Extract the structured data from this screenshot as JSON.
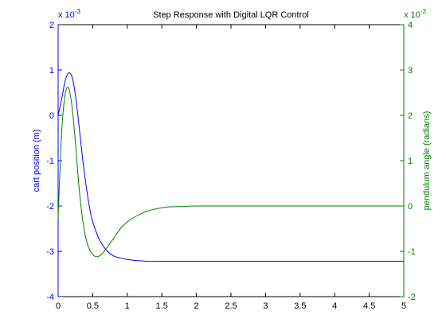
{
  "chart_data": {
    "type": "line",
    "title": "Step Response with Digital LQR Control",
    "x_axis": {
      "range": [
        0,
        5
      ],
      "ticks": [
        0,
        0.5,
        1,
        1.5,
        2,
        2.5,
        3,
        3.5,
        4,
        4.5,
        5
      ],
      "tick_labels": [
        "0",
        "0.5",
        "1",
        "1.5",
        "2",
        "2.5",
        "3",
        "3.5",
        "4",
        "4.5",
        "5"
      ],
      "label": ""
    },
    "y_left": {
      "label": "cart position (m)",
      "range": [
        -4,
        2
      ],
      "ticks": [
        -4,
        -3,
        -2,
        -1,
        0,
        1,
        2
      ],
      "tick_labels": [
        "-4",
        "-3",
        "-2",
        "-1",
        "0",
        "1",
        "2"
      ],
      "multiplier_label": "x 10",
      "multiplier_exp": "-3",
      "color": "#0000ff"
    },
    "y_right": {
      "label": "pendulum angle (radians)",
      "range": [
        -2,
        4
      ],
      "ticks": [
        -2,
        -1,
        0,
        1,
        2,
        3,
        4
      ],
      "tick_labels": [
        "-2",
        "-1",
        "0",
        "1",
        "2",
        "3",
        "4"
      ],
      "multiplier_label": "x 10",
      "multiplier_exp": "-3",
      "color": "#008000"
    },
    "grid": false,
    "legend": "none",
    "series": [
      {
        "axis": "left",
        "color": "#0000ff",
        "x": [
          0,
          0.05,
          0.1,
          0.15,
          0.2,
          0.25,
          0.3,
          0.35,
          0.4,
          0.45,
          0.5,
          0.6,
          0.7,
          0.8,
          0.9,
          1.0,
          1.1,
          1.2,
          1.3,
          1.5,
          2.0,
          2.5,
          3.0,
          3.5,
          4.0,
          4.5,
          5.0
        ],
        "y": [
          0,
          0.35,
          0.75,
          0.93,
          0.85,
          0.45,
          -0.2,
          -0.9,
          -1.5,
          -2.0,
          -2.35,
          -2.75,
          -2.98,
          -3.1,
          -3.15,
          -3.18,
          -3.2,
          -3.21,
          -3.22,
          -3.22,
          -3.22,
          -3.22,
          -3.22,
          -3.22,
          -3.22,
          -3.22,
          -3.22
        ]
      },
      {
        "axis": "right",
        "color": "#008000",
        "x": [
          0,
          0.05,
          0.1,
          0.15,
          0.2,
          0.25,
          0.3,
          0.35,
          0.4,
          0.45,
          0.5,
          0.55,
          0.6,
          0.65,
          0.7,
          0.8,
          0.9,
          1.0,
          1.1,
          1.2,
          1.3,
          1.4,
          1.5,
          1.6,
          1.8,
          2.0,
          2.5,
          3.0,
          4.0,
          5.0
        ],
        "y": [
          -0.25,
          1.6,
          2.45,
          2.6,
          2.2,
          1.4,
          0.45,
          -0.25,
          -0.7,
          -0.95,
          -1.07,
          -1.12,
          -1.1,
          -1.03,
          -0.93,
          -0.72,
          -0.5,
          -0.35,
          -0.25,
          -0.17,
          -0.11,
          -0.07,
          -0.04,
          -0.02,
          -0.01,
          0,
          0,
          0,
          0,
          0
        ]
      }
    ]
  }
}
